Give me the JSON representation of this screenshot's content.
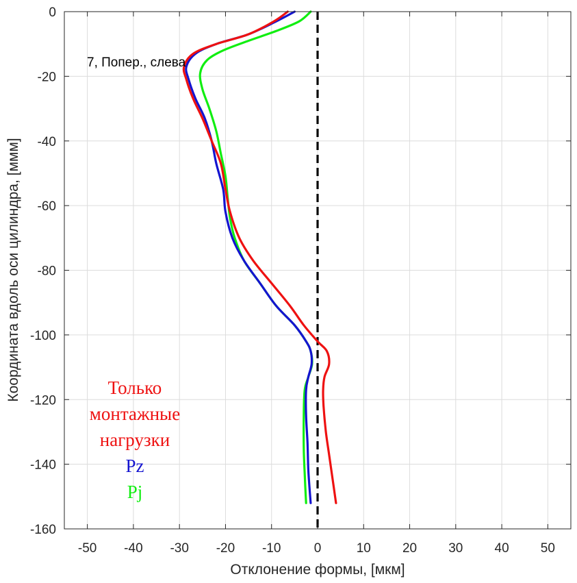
{
  "chart_data": {
    "type": "line",
    "orientation": "y-is-coordinate",
    "xlabel": "Отклонение формы, [мкм]",
    "ylabel": "Координата вдоль оси цилиндра, [ммм]",
    "xlim": [
      -55,
      55
    ],
    "ylim": [
      -160,
      0
    ],
    "xticks": [
      -50,
      -40,
      -30,
      -20,
      -10,
      0,
      10,
      20,
      30,
      40,
      50
    ],
    "yticks": [
      0,
      -20,
      -40,
      -60,
      -80,
      -100,
      -120,
      -140,
      -160
    ],
    "grid": true,
    "annotation": "7, Попер., слева",
    "reference_line": {
      "x": 0,
      "style": "dashed",
      "color": "#000000"
    },
    "legend_position": "bottom-left",
    "series": [
      {
        "name": "Только монтажные нагрузки",
        "legend_lines": [
          "Только",
          "монтажные",
          "нагрузки"
        ],
        "color": "#ee1111",
        "points": [
          [
            -6.5,
            0
          ],
          [
            -9.5,
            -3
          ],
          [
            -15,
            -7
          ],
          [
            -22,
            -10
          ],
          [
            -27,
            -13
          ],
          [
            -29,
            -17
          ],
          [
            -28.5,
            -21
          ],
          [
            -27,
            -27
          ],
          [
            -25,
            -33
          ],
          [
            -23,
            -40
          ],
          [
            -21,
            -47
          ],
          [
            -20,
            -55
          ],
          [
            -19,
            -62
          ],
          [
            -17,
            -70
          ],
          [
            -14,
            -77
          ],
          [
            -10,
            -84
          ],
          [
            -6,
            -91
          ],
          [
            -3,
            -97
          ],
          [
            0,
            -102
          ],
          [
            2,
            -105
          ],
          [
            2.5,
            -109
          ],
          [
            1.5,
            -113
          ],
          [
            1.2,
            -117
          ],
          [
            1.3,
            -122
          ],
          [
            1.8,
            -130
          ],
          [
            2.5,
            -137
          ],
          [
            3.3,
            -145
          ],
          [
            4,
            -152
          ]
        ]
      },
      {
        "name": "Pz",
        "color": "#1414d0",
        "points": [
          [
            -5,
            0
          ],
          [
            -9,
            -3
          ],
          [
            -15,
            -7
          ],
          [
            -22,
            -10
          ],
          [
            -26.5,
            -13
          ],
          [
            -28.5,
            -17
          ],
          [
            -28,
            -21
          ],
          [
            -26.5,
            -27
          ],
          [
            -24.5,
            -33
          ],
          [
            -23,
            -40
          ],
          [
            -22,
            -47
          ],
          [
            -20.5,
            -55
          ],
          [
            -20,
            -62
          ],
          [
            -18.5,
            -70
          ],
          [
            -16,
            -77
          ],
          [
            -12.5,
            -84
          ],
          [
            -9,
            -91
          ],
          [
            -5,
            -97
          ],
          [
            -2.5,
            -102
          ],
          [
            -1.5,
            -105
          ],
          [
            -1.3,
            -109
          ],
          [
            -2,
            -113
          ],
          [
            -2.5,
            -117
          ],
          [
            -2.5,
            -125
          ],
          [
            -2.2,
            -133
          ],
          [
            -2,
            -142
          ],
          [
            -1.5,
            -152
          ]
        ]
      },
      {
        "name": "Pj",
        "color": "#11ee11",
        "points": [
          [
            -1.5,
            0
          ],
          [
            -4,
            -3
          ],
          [
            -9,
            -6
          ],
          [
            -15,
            -9
          ],
          [
            -20.5,
            -12
          ],
          [
            -24,
            -15
          ],
          [
            -25.5,
            -19
          ],
          [
            -25,
            -24
          ],
          [
            -23.5,
            -30
          ],
          [
            -22,
            -37
          ],
          [
            -21,
            -44
          ],
          [
            -20,
            -51
          ],
          [
            -19.5,
            -58
          ],
          [
            -19,
            -64
          ],
          [
            -18,
            -70
          ],
          [
            -16,
            -77
          ],
          [
            -12.5,
            -84
          ],
          [
            -9,
            -91
          ],
          [
            -5,
            -97
          ],
          [
            -2.5,
            -102
          ],
          [
            -1.5,
            -105
          ],
          [
            -1.2,
            -109
          ],
          [
            -2,
            -113
          ],
          [
            -2.8,
            -117
          ],
          [
            -3,
            -125
          ],
          [
            -3,
            -135
          ],
          [
            -2.8,
            -143
          ],
          [
            -2.5,
            -152
          ]
        ]
      }
    ]
  }
}
